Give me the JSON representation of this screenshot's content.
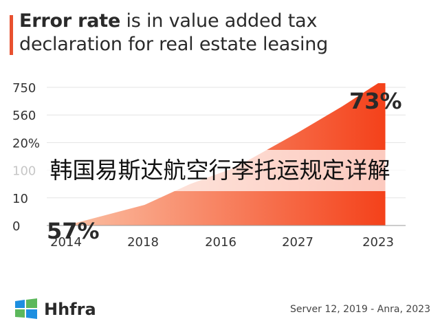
{
  "title": {
    "bold": "Error rate",
    "rest_line1": " is in value added tax",
    "line2": "declaration for real estate leasing"
  },
  "banner": "韩国易斯达航空行李托运规定详解",
  "brand": "Hhfra",
  "credit": "Server 12, 2019 - Anra, 2023",
  "colors": {
    "accent": "#e8502f",
    "area_start": "#f9b08f",
    "area_end": "#f5441c",
    "logo_green": "#5cb85c",
    "logo_blue": "#1d8fe0"
  },
  "chart_data": {
    "type": "area",
    "x_tick_labels": [
      "2014",
      "2018",
      "2016",
      "2027",
      "2023"
    ],
    "y_tick_labels": [
      "0",
      "10",
      "100",
      "20%",
      "560",
      "750"
    ],
    "annotations": [
      "57%",
      "73%"
    ],
    "series": [
      {
        "values": [
          0,
          10,
          100,
          500,
          580
        ],
        "x": [
          0,
          1,
          2,
          3.6,
          4
        ]
      }
    ],
    "grid": true
  }
}
